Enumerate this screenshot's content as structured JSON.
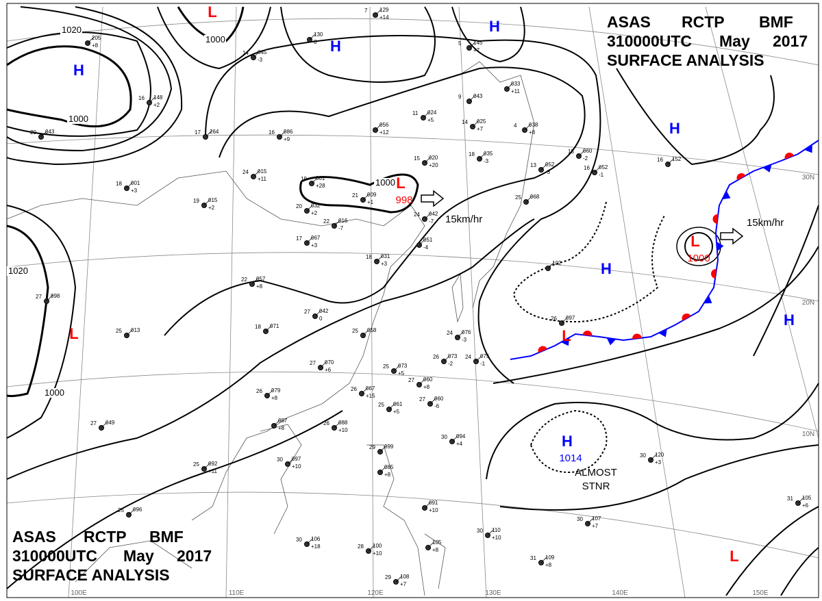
{
  "header": {
    "line1": [
      "ASAS",
      "RCTP",
      "BMF"
    ],
    "line2": [
      "310000UTC",
      "May",
      "2017"
    ],
    "line3": "SURFACE ANALYSIS"
  },
  "colors": {
    "high": "#0000ff",
    "low": "#ff0000",
    "isobar": "#000000",
    "grid": "#888888",
    "coast": "#555555",
    "cold_front": "#0000ff",
    "warm_front": "#ff0000"
  },
  "pressure_centers": [
    {
      "type": "H",
      "label": "H"
    },
    {
      "type": "H",
      "label": "H"
    },
    {
      "type": "H",
      "label": "H"
    },
    {
      "type": "H",
      "label": "H"
    },
    {
      "type": "H",
      "label": "H"
    },
    {
      "type": "H",
      "label": "H",
      "value": "1014"
    },
    {
      "type": "H",
      "label": "H"
    },
    {
      "type": "L",
      "label": "L"
    },
    {
      "type": "L",
      "label": "L",
      "value": "998"
    },
    {
      "type": "L",
      "label": "L",
      "value": "1000"
    },
    {
      "type": "L",
      "label": "L"
    },
    {
      "type": "L",
      "label": "L"
    },
    {
      "type": "L",
      "label": "L"
    }
  ],
  "isobar_labels": [
    "1020",
    "1000",
    "1020",
    "1000",
    "1000",
    "1000"
  ],
  "movements": [
    "15km/hr",
    "15km/hr"
  ],
  "annotation": [
    "ALMOST",
    "STNR"
  ],
  "latitude_labels": [
    "30N",
    "20N",
    "10N"
  ],
  "longitude_labels": [
    "100E",
    "110E",
    "120E",
    "130E",
    "140E",
    "150E"
  ],
  "stations": [
    {
      "pressure": "129",
      "temp": "7",
      "tend": "+14"
    },
    {
      "pressure": "130",
      "temp": "",
      "tend": "0"
    },
    {
      "pressure": "045",
      "temp": "14",
      "tend": "-3"
    },
    {
      "pressure": "205",
      "temp": "",
      "tend": "+8"
    },
    {
      "pressure": "145",
      "temp": "5",
      "tend": "+7"
    },
    {
      "pressure": "033",
      "temp": "",
      "tend": "+11"
    },
    {
      "pressure": "043",
      "temp": "9",
      "tend": ""
    },
    {
      "pressure": "024",
      "temp": "11",
      "tend": "+5"
    },
    {
      "pressure": "025",
      "temp": "14",
      "tend": "+7"
    },
    {
      "pressure": "056",
      "temp": "",
      "tend": "+12"
    },
    {
      "pressure": "038",
      "temp": "4",
      "tend": "+8"
    },
    {
      "pressure": "035",
      "temp": "18",
      "tend": "-3"
    },
    {
      "pressure": "264",
      "temp": "17",
      "tend": ""
    },
    {
      "pressure": "086",
      "temp": "16",
      "tend": "+9"
    },
    {
      "pressure": "043",
      "temp": "20",
      "tend": ""
    },
    {
      "pressure": "148",
      "temp": "16",
      "tend": "+2"
    },
    {
      "pressure": "015",
      "temp": "24",
      "tend": "+11"
    },
    {
      "pressure": "020",
      "temp": "15",
      "tend": "+20"
    },
    {
      "pressure": "001",
      "temp": "19",
      "tend": "+28"
    },
    {
      "pressure": "009",
      "temp": "21",
      "tend": "+1"
    },
    {
      "pressure": "032",
      "temp": "20",
      "tend": "+2"
    },
    {
      "pressure": "016",
      "temp": "22",
      "tend": "-7"
    },
    {
      "pressure": "015",
      "temp": "19",
      "tend": "+2"
    },
    {
      "pressure": "001",
      "temp": "18",
      "tend": "+3"
    },
    {
      "pressure": "042",
      "temp": "24",
      "tend": "-7"
    },
    {
      "pressure": "051",
      "temp": "",
      "tend": "-4"
    },
    {
      "pressure": "067",
      "temp": "17",
      "tend": "+3"
    },
    {
      "pressure": "031",
      "temp": "18",
      "tend": "+3"
    },
    {
      "pressure": "052",
      "temp": "13",
      "tend": "-3"
    },
    {
      "pressure": "060",
      "temp": "15",
      "tend": "-2"
    },
    {
      "pressure": "068",
      "temp": "25",
      "tend": ""
    },
    {
      "pressure": "052",
      "temp": "16",
      "tend": "-1"
    },
    {
      "pressure": "057",
      "temp": "22",
      "tend": "+8"
    },
    {
      "pressure": "042",
      "temp": "27",
      "tend": "0"
    },
    {
      "pressure": "998",
      "temp": "27",
      "tend": ""
    },
    {
      "pressure": "013",
      "temp": "25",
      "tend": ""
    },
    {
      "pressure": "071",
      "temp": "18",
      "tend": ""
    },
    {
      "pressure": "058",
      "temp": "25",
      "tend": ""
    },
    {
      "pressure": "076",
      "temp": "24",
      "tend": "-3"
    },
    {
      "pressure": "073",
      "temp": "26",
      "tend": "-2"
    },
    {
      "pressure": "075",
      "temp": "24",
      "tend": "-1"
    },
    {
      "pressure": "097",
      "temp": "26",
      "tend": ""
    },
    {
      "pressure": "070",
      "temp": "27",
      "tend": "+6"
    },
    {
      "pressure": "073",
      "temp": "25",
      "tend": "+5"
    },
    {
      "pressure": "060",
      "temp": "27",
      "tend": "+8"
    },
    {
      "pressure": "067",
      "temp": "26",
      "tend": "+15"
    },
    {
      "pressure": "060",
      "temp": "27",
      "tend": "-6"
    },
    {
      "pressure": "061",
      "temp": "25",
      "tend": "+5"
    },
    {
      "pressure": "079",
      "temp": "26",
      "tend": "+8"
    },
    {
      "pressure": "049",
      "temp": "27",
      "tend": ""
    },
    {
      "pressure": "087",
      "temp": "",
      "tend": "+8"
    },
    {
      "pressure": "088",
      "temp": "26",
      "tend": "+10"
    },
    {
      "pressure": "094",
      "temp": "30",
      "tend": "+4"
    },
    {
      "pressure": "092",
      "temp": "25",
      "tend": "+11"
    },
    {
      "pressure": "097",
      "temp": "30",
      "tend": "+10"
    },
    {
      "pressure": "099",
      "temp": "29",
      "tend": ""
    },
    {
      "pressure": "085",
      "temp": "",
      "tend": "+8"
    },
    {
      "pressure": "091",
      "temp": "",
      "tend": "+10"
    },
    {
      "pressure": "120",
      "temp": "30",
      "tend": "+3"
    },
    {
      "pressure": "105",
      "temp": "31",
      "tend": "+6"
    },
    {
      "pressure": "096",
      "temp": "25",
      "tend": ""
    },
    {
      "pressure": "106",
      "temp": "30",
      "tend": "+18"
    },
    {
      "pressure": "100",
      "temp": "28",
      "tend": "+10"
    },
    {
      "pressure": "105",
      "temp": "",
      "tend": "+8"
    },
    {
      "pressure": "110",
      "temp": "30",
      "tend": "+10"
    },
    {
      "pressure": "107",
      "temp": "30",
      "tend": "+7"
    },
    {
      "pressure": "109",
      "temp": "31",
      "tend": "+8"
    },
    {
      "pressure": "108",
      "temp": "29",
      "tend": "+7"
    },
    {
      "pressure": "102",
      "temp": "",
      "tend": ""
    },
    {
      "pressure": "152",
      "temp": "16",
      "tend": ""
    }
  ]
}
